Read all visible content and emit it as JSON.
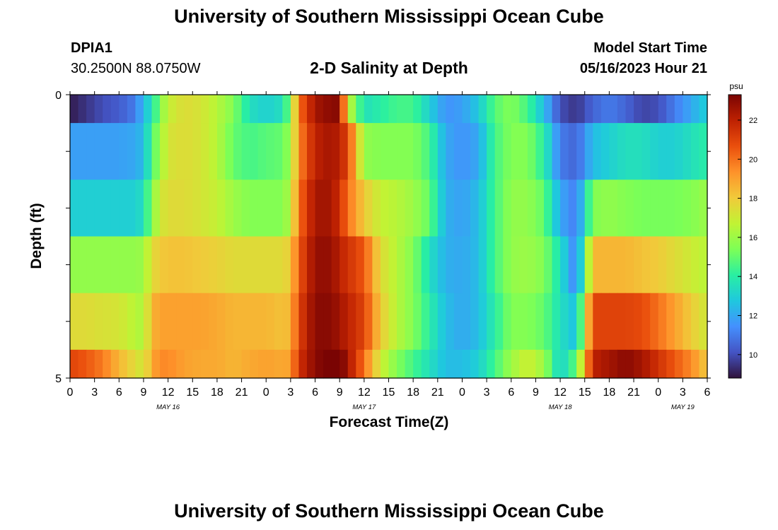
{
  "page": {
    "title": "University of Southern Mississippi Ocean Cube",
    "station": "DPIA1",
    "coords": "30.2500N  88.0750W",
    "subtitle": "2-D Salinity at Depth",
    "model_start_label": "Model Start Time",
    "model_start_value": "05/16/2023 Hour 21",
    "footer_title": "University of Southern Mississippi Ocean Cube"
  },
  "chart_data": {
    "type": "heatmap",
    "title": "2-D Salinity at Depth",
    "xlabel": "Forecast Time(Z)",
    "ylabel": "Depth (ft)",
    "x_range_hours": [
      0,
      78
    ],
    "x_tick_step_hours": 3,
    "x_tick_labels": [
      "0",
      "3",
      "6",
      "9",
      "12",
      "15",
      "18",
      "21",
      "0",
      "3",
      "6",
      "9",
      "12",
      "15",
      "18",
      "21",
      "0",
      "3",
      "6",
      "9",
      "12",
      "15",
      "18",
      "21",
      "0",
      "3",
      "6"
    ],
    "date_labels": [
      {
        "hour": 12,
        "text": "MAY 16"
      },
      {
        "hour": 36,
        "text": "MAY 17"
      },
      {
        "hour": 60,
        "text": "MAY 18"
      },
      {
        "hour": 75,
        "text": "MAY 19"
      }
    ],
    "y_range_ft": [
      0,
      5
    ],
    "y_tick_labels": [
      {
        "value": 0,
        "text": "0"
      },
      {
        "value": 5,
        "text": "5"
      }
    ],
    "depth_levels_ft": [
      0.25,
      1.0,
      2.0,
      3.0,
      4.0,
      4.75
    ],
    "depth_level_edges_ft": [
      0,
      0.5,
      1.5,
      2.5,
      3.5,
      4.5,
      5
    ],
    "anchor_hours": [
      0,
      2,
      4,
      6,
      8,
      9,
      10,
      11,
      12,
      14,
      16,
      18,
      20,
      22,
      24,
      26,
      27,
      28,
      30,
      32,
      33,
      34,
      36,
      38,
      40,
      42,
      44,
      46,
      48,
      50,
      52,
      54,
      56,
      58,
      60,
      62,
      64,
      66,
      68,
      70,
      72,
      74,
      76,
      78
    ],
    "salinity_psu": [
      [
        9.0,
        9.5,
        10.0,
        10.3,
        11.0,
        12.5,
        13.5,
        15.5,
        16.8,
        17.5,
        17.2,
        16.5,
        15.5,
        13.5,
        13.0,
        13.5,
        15.5,
        20.0,
        22.5,
        23.0,
        23.0,
        17.0,
        13.5,
        14.0,
        14.5,
        14.5,
        13.0,
        11.5,
        11.8,
        12.8,
        14.8,
        15.5,
        14.5,
        12.5,
        10.0,
        9.5,
        10.5,
        11.0,
        10.5,
        9.8,
        10.0,
        11.0,
        12.0,
        13.0
      ],
      [
        11.8,
        11.8,
        11.8,
        11.8,
        12.0,
        12.5,
        14.5,
        16.0,
        17.2,
        17.5,
        17.2,
        16.5,
        15.0,
        14.5,
        14.8,
        15.0,
        16.0,
        19.5,
        22.0,
        22.5,
        22.0,
        21.0,
        15.8,
        15.5,
        15.5,
        15.5,
        14.5,
        12.0,
        11.5,
        12.0,
        14.5,
        15.5,
        15.5,
        14.0,
        11.0,
        10.5,
        12.5,
        13.0,
        13.5,
        13.5,
        13.0,
        13.0,
        13.5,
        14.0
      ],
      [
        13.0,
        13.0,
        13.0,
        13.0,
        13.0,
        13.5,
        15.5,
        17.0,
        17.5,
        17.5,
        17.2,
        16.8,
        16.0,
        15.5,
        15.5,
        15.5,
        16.5,
        20.0,
        22.5,
        22.5,
        21.5,
        20.0,
        18.0,
        16.8,
        16.5,
        16.0,
        15.0,
        12.2,
        11.8,
        12.5,
        14.5,
        15.8,
        15.8,
        15.0,
        12.0,
        11.0,
        15.5,
        15.8,
        15.5,
        15.3,
        15.3,
        15.3,
        15.5,
        16.0
      ],
      [
        15.8,
        15.8,
        15.8,
        15.8,
        15.8,
        16.0,
        17.5,
        18.0,
        18.2,
        18.2,
        18.0,
        17.8,
        17.5,
        17.5,
        17.5,
        17.5,
        18.0,
        20.5,
        22.8,
        22.8,
        22.0,
        21.5,
        20.5,
        17.5,
        16.5,
        15.5,
        13.5,
        12.2,
        12.0,
        12.5,
        14.5,
        15.8,
        16.0,
        15.5,
        13.5,
        11.0,
        18.5,
        18.5,
        18.5,
        18.2,
        18.0,
        17.5,
        17.0,
        16.5
      ],
      [
        17.5,
        17.5,
        17.3,
        17.2,
        16.5,
        16.3,
        18.5,
        19.0,
        19.0,
        19.0,
        19.0,
        18.8,
        18.5,
        18.5,
        18.5,
        18.2,
        18.5,
        21.0,
        23.0,
        23.0,
        22.5,
        22.0,
        21.0,
        18.0,
        16.5,
        15.5,
        14.0,
        12.5,
        12.0,
        12.5,
        14.0,
        15.5,
        15.5,
        15.0,
        13.5,
        12.5,
        21.0,
        21.0,
        21.0,
        20.8,
        20.0,
        19.0,
        18.0,
        17.0
      ],
      [
        21.0,
        20.5,
        19.8,
        18.5,
        17.5,
        17.0,
        18.8,
        19.5,
        19.5,
        19.0,
        18.8,
        18.8,
        18.5,
        18.8,
        19.0,
        18.8,
        19.0,
        21.5,
        23.0,
        23.5,
        23.5,
        22.5,
        20.0,
        17.0,
        15.5,
        14.5,
        13.5,
        12.5,
        12.5,
        13.0,
        14.5,
        16.0,
        17.0,
        16.0,
        13.0,
        15.0,
        22.0,
        22.5,
        23.0,
        22.5,
        21.5,
        20.5,
        19.5,
        18.0
      ]
    ],
    "colorbar": {
      "label": "psu",
      "range": [
        8.8,
        23.3
      ],
      "ticks": [
        10,
        12,
        14,
        16,
        18,
        20,
        22
      ]
    },
    "colormap": [
      "#30123b",
      "#4454c4",
      "#4490fe",
      "#1fc8de",
      "#29efa2",
      "#7dff56",
      "#c1f334",
      "#f1ca3a",
      "#fe922a",
      "#ea4f0d",
      "#be2102",
      "#7a0403"
    ]
  }
}
